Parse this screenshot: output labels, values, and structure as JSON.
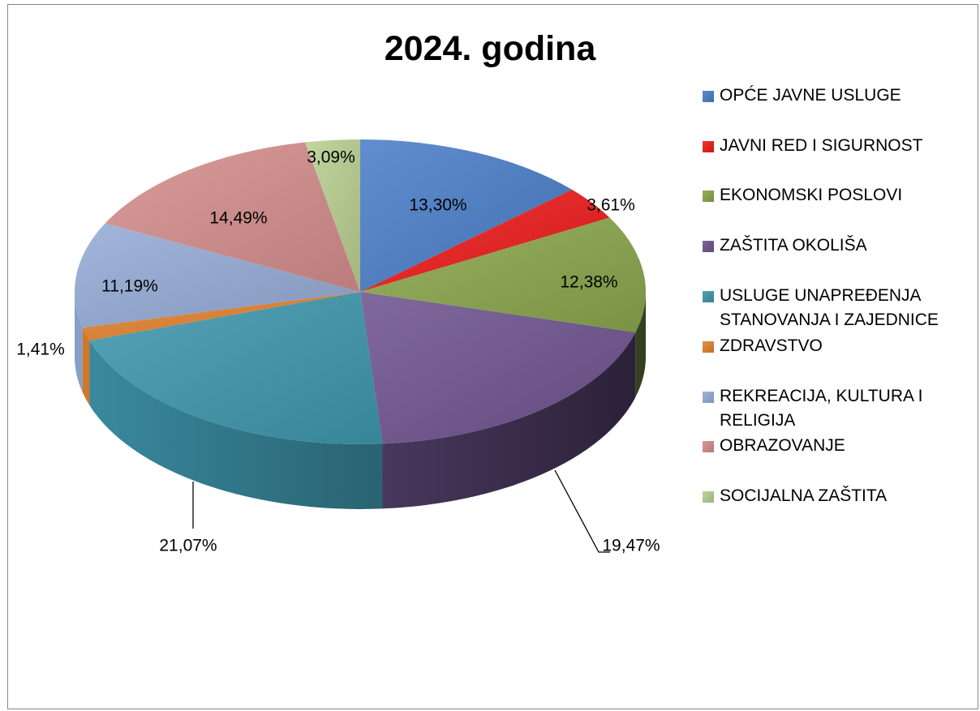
{
  "chart_data": {
    "type": "pie",
    "title": "2024. godina",
    "legend_position": "right",
    "categories": [
      "OPĆE JAVNE USLUGE",
      "JAVNI RED I SIGURNOST",
      "EKONOMSKI POSLOVI",
      "ZAŠTITA OKOLIŠA",
      "USLUGE UNAPREĐENJA STANOVANJA I ZAJEDNICE",
      "ZDRAVSTVO",
      "REKREACIJA, KULTURA I RELIGIJA",
      "OBRAZOVANJE",
      "SOCIJALNA ZAŠTITA"
    ],
    "values": [
      13.3,
      3.61,
      12.38,
      19.47,
      21.07,
      1.41,
      11.19,
      14.49,
      3.09
    ],
    "data_labels": [
      "13,30%",
      "3,61%",
      "12,38%",
      "19,47%",
      "21,07%",
      "1,41%",
      "11,19%",
      "14,49%",
      "3,09%"
    ],
    "colors": [
      "#4a7fc9",
      "#ee1c1c",
      "#8aa64c",
      "#6f548f",
      "#3f97ae",
      "#e3822f",
      "#95acd6",
      "#d48e8c",
      "#b9cf92"
    ]
  }
}
